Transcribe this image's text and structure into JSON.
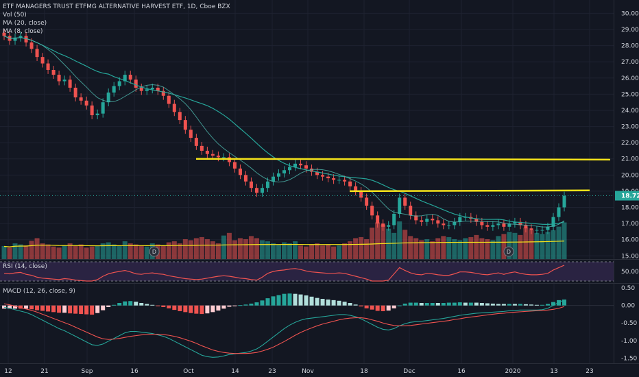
{
  "header": {
    "title": "ETF MANAGERS TRUST ETFMG ALTERNATIVE HARVEST ETF, 1D, Cboe BZX",
    "vol": "Vol (50)",
    "ma20": "MA (20, close)",
    "ma8": "MA (8, close)"
  },
  "rsi_panel": {
    "label": "RSI (14, close)"
  },
  "macd_panel": {
    "label": "MACD (12, 26, close, 9)"
  },
  "colors": {
    "background": "#131722",
    "up": "#26a69a",
    "down": "#ef5350",
    "ma_line": "#26a69a",
    "resistance": "#f5e31a",
    "vol_ma": "#f5e31a",
    "rsi": "#ef5350",
    "rsi_band": "#2a2342",
    "macd": "#26a69a",
    "signal": "#ef5350",
    "last_price_bg": "#26a69a"
  },
  "chart_data": {
    "type": "candlestick",
    "last_price": "18.72",
    "price_axis": {
      "range": [
        14.8,
        30.4
      ],
      "ticks": [
        "30.00",
        "29.00",
        "28.00",
        "27.00",
        "26.00",
        "25.00",
        "24.00",
        "23.00",
        "22.00",
        "21.00",
        "20.00",
        "19.00",
        "18.00",
        "17.00",
        "16.00",
        "15.00"
      ]
    },
    "rsi_axis": {
      "ticks": [
        "50.00"
      ]
    },
    "macd_axis": {
      "range": [
        -1.65,
        0.62
      ],
      "ticks": [
        "0.50",
        "0.00",
        "-0.50",
        "-1.00",
        "-1.50"
      ]
    },
    "x_axis_ticks": [
      "12",
      "21",
      "Sep",
      "16",
      "Oct",
      "14",
      "23",
      "Nov",
      "18",
      "Dec",
      "16",
      "2020",
      "13",
      "23"
    ],
    "dividend_markers": [
      "D",
      "D"
    ],
    "resistance_lines": [
      {
        "level_start": 21.0,
        "level_end": 20.95
      },
      {
        "level_start": 19.0,
        "level_end": 19.05
      }
    ],
    "close": [
      28.6,
      28.3,
      28.5,
      28.6,
      28.2,
      27.8,
      27.3,
      26.9,
      26.5,
      26.2,
      25.8,
      25.9,
      25.4,
      24.8,
      24.6,
      24.3,
      23.7,
      23.8,
      24.5,
      25.1,
      25.5,
      25.8,
      26.2,
      25.9,
      25.4,
      25.2,
      25.3,
      25.4,
      25.2,
      24.9,
      24.4,
      23.9,
      23.4,
      22.8,
      22.3,
      21.8,
      21.5,
      21.3,
      21.2,
      21.1,
      21.1,
      20.8,
      20.4,
      20.0,
      19.6,
      19.2,
      18.9,
      19.2,
      19.6,
      19.9,
      20.1,
      20.3,
      20.5,
      20.7,
      20.6,
      20.4,
      20.2,
      20.0,
      19.9,
      19.8,
      19.7,
      19.7,
      19.6,
      19.3,
      19.0,
      18.6,
      18.1,
      17.5,
      17.0,
      16.8,
      16.9,
      17.6,
      18.6,
      18.1,
      17.5,
      17.2,
      17.1,
      17.3,
      17.2,
      17.0,
      16.9,
      16.9,
      17.1,
      17.4,
      17.4,
      17.3,
      17.1,
      16.9,
      16.8,
      16.9,
      17.0,
      16.8,
      17.0,
      17.1,
      16.9,
      16.7,
      16.6,
      16.6,
      16.6,
      16.8,
      17.4,
      18.0,
      18.72
    ],
    "volume": [
      25,
      22,
      30,
      28,
      26,
      35,
      40,
      30,
      28,
      24,
      22,
      26,
      30,
      25,
      28,
      22,
      24,
      26,
      30,
      32,
      28,
      25,
      34,
      30,
      28,
      26,
      24,
      30,
      28,
      26,
      32,
      34,
      30,
      38,
      36,
      40,
      42,
      38,
      34,
      30,
      45,
      50,
      36,
      40,
      38,
      44,
      40,
      36,
      34,
      30,
      28,
      32,
      30,
      34,
      26,
      24,
      28,
      30,
      26,
      28,
      24,
      26,
      30,
      34,
      40,
      42,
      38,
      60,
      70,
      66,
      58,
      50,
      72,
      56,
      44,
      40,
      36,
      38,
      34,
      40,
      44,
      42,
      38,
      36,
      40,
      42,
      46,
      40,
      38,
      36,
      44,
      48,
      52,
      50,
      46,
      60,
      56,
      50,
      48,
      52,
      55,
      62,
      70
    ],
    "rsi": [
      46,
      45,
      47,
      48,
      44,
      42,
      38,
      36,
      35,
      34,
      33,
      35,
      34,
      32,
      31,
      30,
      29,
      33,
      40,
      45,
      48,
      50,
      52,
      49,
      45,
      44,
      46,
      47,
      45,
      44,
      41,
      39,
      37,
      35,
      34,
      33,
      34,
      36,
      38,
      40,
      41,
      40,
      38,
      36,
      35,
      33,
      32,
      38,
      46,
      50,
      52,
      53,
      55,
      56,
      54,
      51,
      49,
      48,
      47,
      46,
      46,
      47,
      46,
      43,
      40,
      37,
      34,
      30,
      28,
      29,
      32,
      45,
      58,
      52,
      47,
      44,
      43,
      46,
      45,
      43,
      42,
      42,
      45,
      49,
      49,
      48,
      46,
      44,
      43,
      45,
      47,
      44,
      47,
      49,
      46,
      44,
      43,
      43,
      44,
      46,
      53,
      58,
      63
    ],
    "macd": [
      -0.05,
      -0.08,
      -0.12,
      -0.16,
      -0.2,
      -0.26,
      -0.34,
      -0.42,
      -0.5,
      -0.58,
      -0.66,
      -0.72,
      -0.8,
      -0.88,
      -0.96,
      -1.04,
      -1.12,
      -1.14,
      -1.1,
      -1.02,
      -0.94,
      -0.86,
      -0.78,
      -0.74,
      -0.74,
      -0.76,
      -0.78,
      -0.8,
      -0.84,
      -0.88,
      -0.94,
      -1.02,
      -1.1,
      -1.18,
      -1.26,
      -1.34,
      -1.42,
      -1.46,
      -1.48,
      -1.47,
      -1.44,
      -1.4,
      -1.38,
      -1.36,
      -1.34,
      -1.3,
      -1.24,
      -1.14,
      -1.02,
      -0.9,
      -0.78,
      -0.66,
      -0.56,
      -0.48,
      -0.42,
      -0.38,
      -0.36,
      -0.34,
      -0.32,
      -0.3,
      -0.28,
      -0.26,
      -0.26,
      -0.28,
      -0.32,
      -0.38,
      -0.46,
      -0.54,
      -0.62,
      -0.68,
      -0.7,
      -0.66,
      -0.58,
      -0.52,
      -0.48,
      -0.46,
      -0.45,
      -0.43,
      -0.41,
      -0.39,
      -0.37,
      -0.34,
      -0.31,
      -0.28,
      -0.26,
      -0.24,
      -0.22,
      -0.21,
      -0.2,
      -0.19,
      -0.18,
      -0.17,
      -0.15,
      -0.14,
      -0.13,
      -0.13,
      -0.13,
      -0.13,
      -0.12,
      -0.08,
      0.0,
      0.09,
      0.16
    ],
    "signal": [
      0.05,
      0.02,
      -0.02,
      -0.06,
      -0.1,
      -0.14,
      -0.19,
      -0.25,
      -0.31,
      -0.37,
      -0.43,
      -0.49,
      -0.55,
      -0.62,
      -0.69,
      -0.76,
      -0.83,
      -0.9,
      -0.95,
      -0.97,
      -0.96,
      -0.94,
      -0.91,
      -0.88,
      -0.86,
      -0.84,
      -0.83,
      -0.82,
      -0.82,
      -0.83,
      -0.85,
      -0.88,
      -0.92,
      -0.97,
      -1.02,
      -1.08,
      -1.15,
      -1.21,
      -1.27,
      -1.31,
      -1.34,
      -1.36,
      -1.37,
      -1.37,
      -1.37,
      -1.36,
      -1.34,
      -1.3,
      -1.25,
      -1.19,
      -1.11,
      -1.03,
      -0.94,
      -0.85,
      -0.77,
      -0.7,
      -0.64,
      -0.58,
      -0.53,
      -0.49,
      -0.45,
      -0.41,
      -0.38,
      -0.36,
      -0.35,
      -0.35,
      -0.37,
      -0.41,
      -0.45,
      -0.5,
      -0.54,
      -0.57,
      -0.58,
      -0.58,
      -0.57,
      -0.55,
      -0.53,
      -0.51,
      -0.49,
      -0.47,
      -0.45,
      -0.43,
      -0.4,
      -0.38,
      -0.35,
      -0.33,
      -0.31,
      -0.29,
      -0.27,
      -0.25,
      -0.23,
      -0.22,
      -0.2,
      -0.19,
      -0.18,
      -0.17,
      -0.16,
      -0.15,
      -0.14,
      -0.13,
      -0.11,
      -0.08,
      -0.03
    ]
  }
}
